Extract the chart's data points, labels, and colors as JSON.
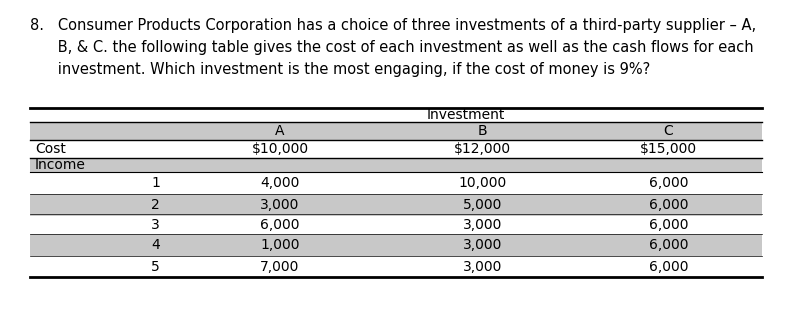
{
  "question_number": "8.",
  "question_lines": [
    "8.   Consumer Products Corporation has a choice of three investments of a third-party supplier – A,",
    "      B, & C. the following table gives the cost of each investment as well as the cash flows for each",
    "      investment. Which investment is the most engaging, if the cost of money is 9%?"
  ],
  "header_investment": "Investment",
  "col_headers": [
    "A",
    "B",
    "C"
  ],
  "cost_label": "Cost",
  "cost_values": [
    "$10,000",
    "$12,000",
    "$15,000"
  ],
  "income_label": "Income",
  "row_labels": [
    "1",
    "2",
    "3",
    "4",
    "5"
  ],
  "table_data": [
    [
      "4,000",
      "10,000",
      "6,000"
    ],
    [
      "3,000",
      "5,000",
      "6,000"
    ],
    [
      "6,000",
      "3,000",
      "6,000"
    ],
    [
      "1,000",
      "3,000",
      "6,000"
    ],
    [
      "7,000",
      "3,000",
      "6,000"
    ]
  ],
  "shaded_color": "#c8c8c8",
  "bg_color": "#ffffff",
  "question_fontsize": 10.5,
  "table_fontsize": 10.0,
  "fig_width": 7.92,
  "fig_height": 3.27,
  "dpi": 100
}
